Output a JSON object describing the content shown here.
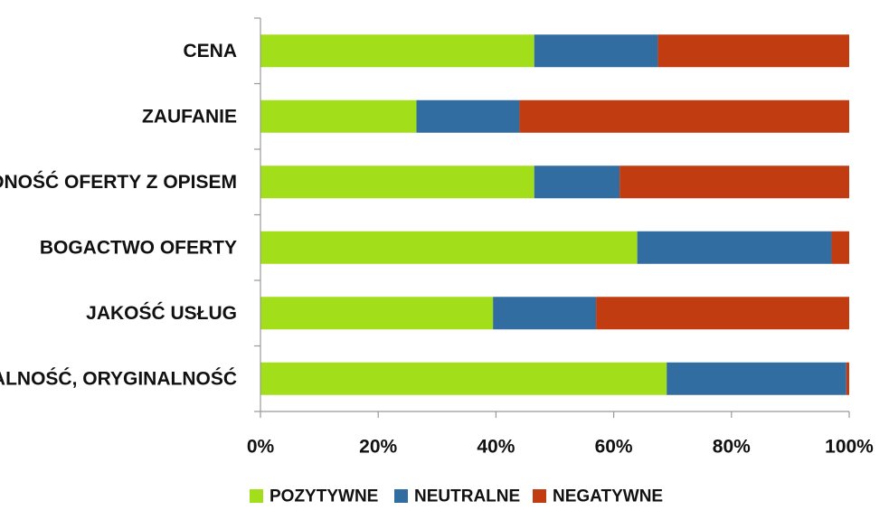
{
  "chart_data": {
    "type": "bar",
    "orientation": "horizontal",
    "stacked": true,
    "percent_stacked": true,
    "categories": [
      "CENA",
      "ZAUFANIE",
      "ZGODNOŚĆ OFERTY Z OPISEM",
      "BOGACTWO OFERTY",
      "JAKOŚĆ USŁUG",
      "UNIKALNOŚĆ, ORYGINALNOŚĆ"
    ],
    "series": [
      {
        "name": "POZYTYWNE",
        "color": "#a3de1a",
        "values": [
          46.5,
          26.5,
          46.5,
          64.0,
          39.5,
          69.0
        ]
      },
      {
        "name": "NEUTRALNE",
        "color": "#326da1",
        "values": [
          21.0,
          17.5,
          14.5,
          33.0,
          17.5,
          30.5
        ]
      },
      {
        "name": "NEGATYWNE",
        "color": "#c23c12",
        "values": [
          32.5,
          56.0,
          39.0,
          3.0,
          43.0,
          0.5
        ]
      }
    ],
    "x_ticks": [
      "0%",
      "20%",
      "40%",
      "60%",
      "80%",
      "100%"
    ],
    "xlim": [
      0,
      100
    ],
    "title": "",
    "xlabel": "",
    "ylabel": "",
    "grid": false,
    "legend_position": "bottom"
  }
}
